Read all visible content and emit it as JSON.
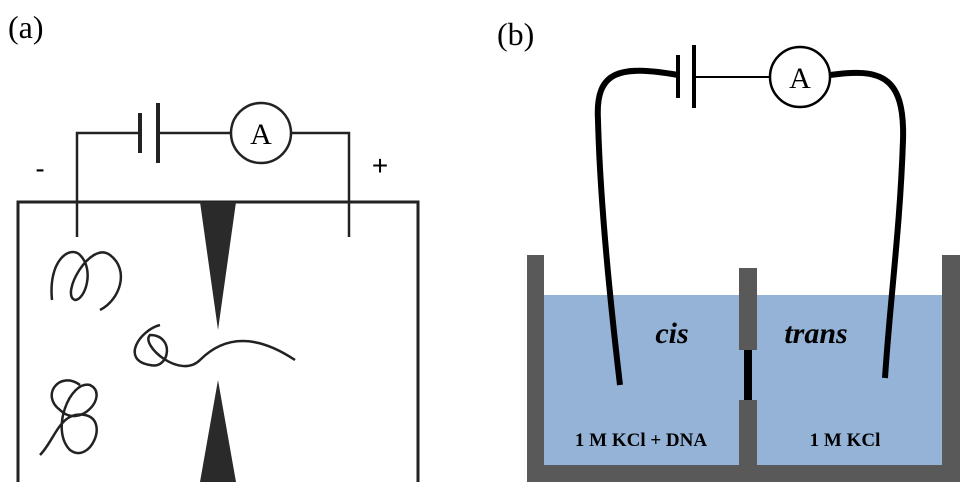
{
  "panels": [
    {
      "label": "(a)",
      "terminals": {
        "negative": "-",
        "positive": "+"
      },
      "ammeter": "A"
    },
    {
      "label": "(b)",
      "ammeter": "A",
      "chambers": [
        {
          "name": "cis",
          "solution": "1 M KCl + DNA"
        },
        {
          "name": "trans",
          "solution": "1 M KCl"
        }
      ]
    }
  ]
}
